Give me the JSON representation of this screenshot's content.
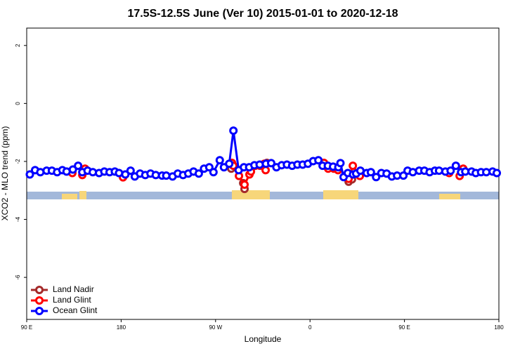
{
  "chart_data": {
    "type": "line",
    "title": "17.5S-12.5S June (Ver 10)   2015-01-01 to 2020-12-18",
    "x_label": "Longitude",
    "y_label": "XCO2 - MLO trend (ppm)",
    "xlim": [
      90,
      540
    ],
    "xticks": [
      {
        "value": 90,
        "label": "90 E"
      },
      180,
      {
        "value": 270,
        "label": "90 W"
      },
      {
        "value": 360,
        "label": "0"
      },
      {
        "value": 450,
        "label": "90 E"
      },
      {
        "value": 540,
        "label": "180"
      }
    ],
    "ylim": [
      -7.45,
      2.6
    ],
    "yticks": [
      -6,
      -4,
      -2,
      0,
      2
    ],
    "legend": "bottom-left",
    "series": [
      {
        "name": "Land Nadir",
        "color": "#a52a2a",
        "x": [
          284.9,
          null,
          296.3,
          297.6,
          null,
          319,
          null,
          396.8,
          400
        ],
        "values": [
          -2.25,
          null,
          -2.75,
          -2.95,
          null,
          -2.05,
          null,
          -2.7,
          -2.62
        ]
      },
      {
        "name": "Land Glint",
        "color": "#ff0000",
        "x": [
          133.5,
          null,
          143,
          145.6,
          null,
          181.8,
          null,
          285.6,
          286.9,
          292.3,
          297.6,
          302.3,
          303.7,
          307.7,
          312.4,
          316.4,
          317.7,
          null,
          373.3,
          377.3,
          382.7,
          386.7,
          null,
          396.8,
          400.8,
          407.5,
          null,
          492.6,
          null,
          502.6,
          506
        ],
        "values": [
          -2.4,
          null,
          -2.47,
          -2.25,
          null,
          -2.55,
          null,
          -2.05,
          -2.15,
          -2.5,
          -2.8,
          -2.45,
          -2.35,
          -2.15,
          -2.15,
          -2.08,
          -2.3,
          null,
          -2.05,
          -2.25,
          -2.25,
          -2.3,
          null,
          -2.6,
          -2.15,
          -2.5,
          null,
          -2.4,
          null,
          -2.5,
          -2.25
        ]
      },
      {
        "name": "Ocean Glint",
        "color": "#0000ff",
        "x": [
          93,
          98,
          103,
          109,
          114,
          119,
          124,
          128,
          134,
          139,
          143,
          148,
          153,
          159,
          164,
          169,
          174,
          178,
          184,
          189,
          193,
          198,
          203,
          208,
          213,
          219,
          223,
          229,
          234,
          239,
          244,
          249,
          254,
          259,
          264,
          268,
          274,
          278,
          283,
          287,
          292,
          297,
          302,
          307,
          312,
          318,
          323,
          328,
          333,
          338,
          343,
          348,
          353,
          358,
          363,
          368,
          372,
          377,
          382,
          387,
          389,
          392,
          396,
          401,
          404,
          408,
          414,
          418,
          423,
          428,
          433,
          438,
          443,
          449,
          453,
          458,
          464,
          469,
          474,
          479,
          483,
          489,
          494,
          499,
          504,
          508,
          514,
          518,
          523,
          528,
          534,
          538
        ],
        "values": [
          -2.45,
          -2.3,
          -2.37,
          -2.32,
          -2.32,
          -2.37,
          -2.3,
          -2.35,
          -2.28,
          -2.15,
          -2.37,
          -2.32,
          -2.37,
          -2.4,
          -2.35,
          -2.37,
          -2.35,
          -2.4,
          -2.45,
          -2.32,
          -2.52,
          -2.42,
          -2.47,
          -2.42,
          -2.47,
          -2.49,
          -2.49,
          -2.52,
          -2.42,
          -2.47,
          -2.42,
          -2.35,
          -2.42,
          -2.25,
          -2.2,
          -2.37,
          -1.96,
          -2.2,
          -2.08,
          -0.94,
          -2.3,
          -2.2,
          -2.2,
          -2.13,
          -2.11,
          -2.08,
          -2.06,
          -2.2,
          -2.13,
          -2.11,
          -2.15,
          -2.11,
          -2.11,
          -2.08,
          -1.99,
          -1.96,
          -2.15,
          -2.15,
          -2.18,
          -2.2,
          -2.06,
          -2.54,
          -2.4,
          -2.45,
          -2.42,
          -2.32,
          -2.4,
          -2.37,
          -2.54,
          -2.4,
          -2.42,
          -2.52,
          -2.49,
          -2.49,
          -2.32,
          -2.37,
          -2.32,
          -2.32,
          -2.37,
          -2.32,
          -2.32,
          -2.35,
          -2.32,
          -2.15,
          -2.37,
          -2.35,
          -2.35,
          -2.4,
          -2.37,
          -2.37,
          -2.35,
          -2.4
        ]
      }
    ]
  }
}
